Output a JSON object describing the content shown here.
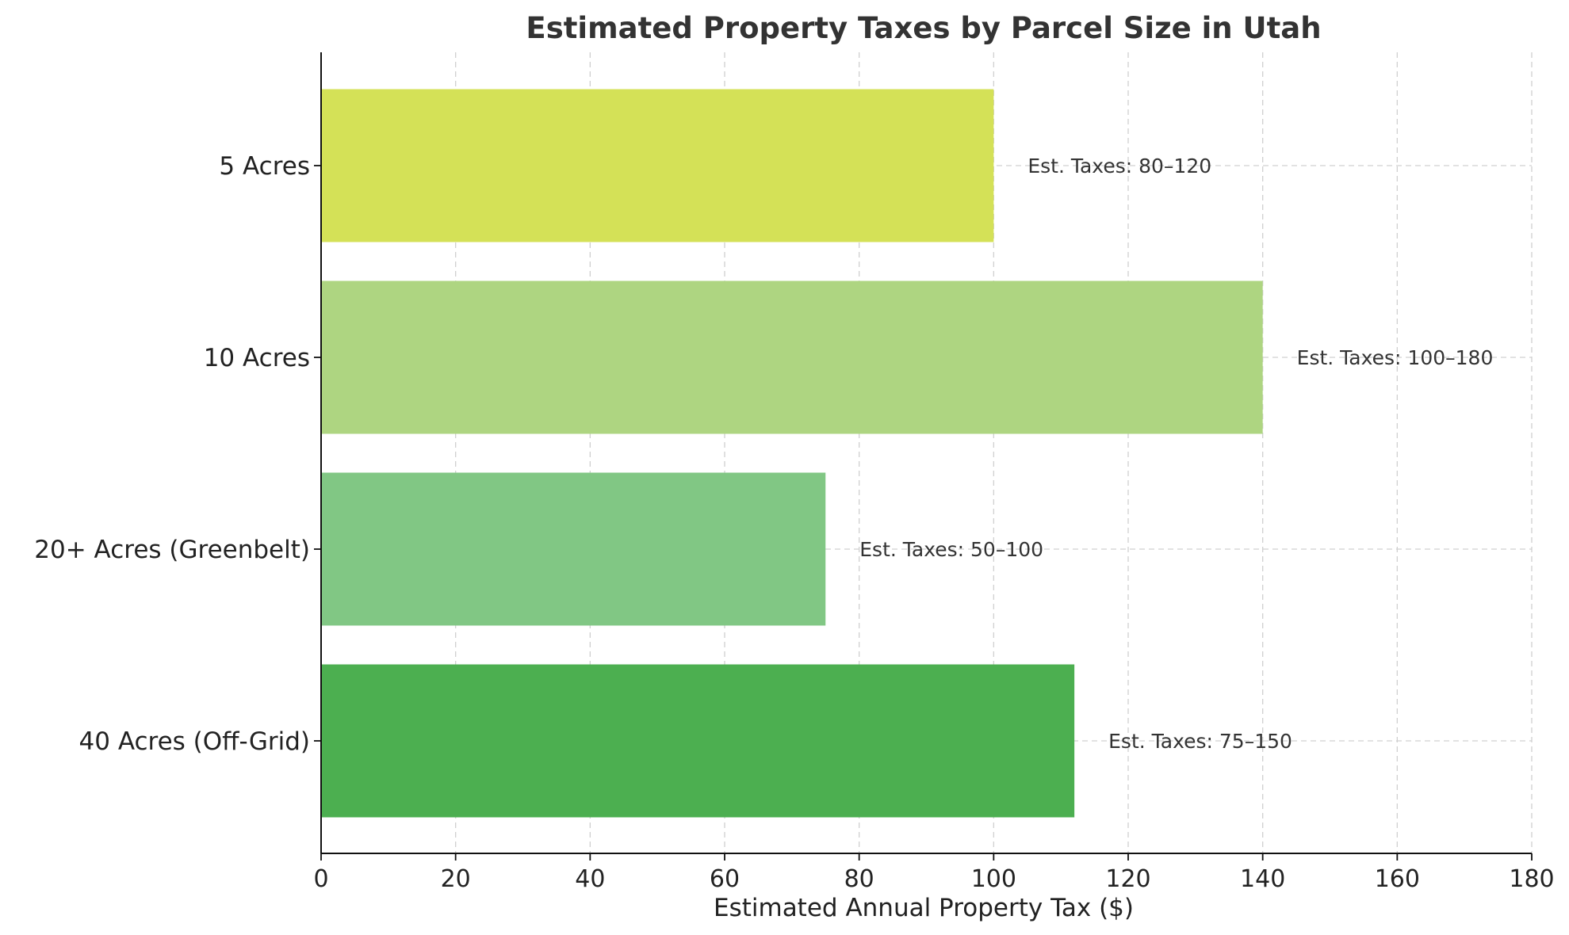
{
  "chart_data": {
    "type": "bar",
    "orientation": "horizontal",
    "title": "Estimated Property Taxes by Parcel Size in Utah",
    "xlabel": "Estimated Annual Property Tax ($)",
    "ylabel": "",
    "categories": [
      "5 Acres",
      "10 Acres",
      "20+ Acres (Greenbelt)",
      "40 Acres (Off-Grid)"
    ],
    "values": [
      100,
      140,
      75,
      112
    ],
    "data_labels": [
      "Est. Taxes: 80–120",
      "Est. Taxes: 100–180",
      "Est. Taxes: 50–100",
      "Est. Taxes: 75–150"
    ],
    "colors": [
      "#d4e157",
      "#aed581",
      "#81c784",
      "#4caf50"
    ],
    "xlim": [
      0,
      180
    ],
    "xticks": [
      0,
      20,
      40,
      60,
      80,
      100,
      120,
      140,
      160,
      180
    ],
    "grid": true
  }
}
